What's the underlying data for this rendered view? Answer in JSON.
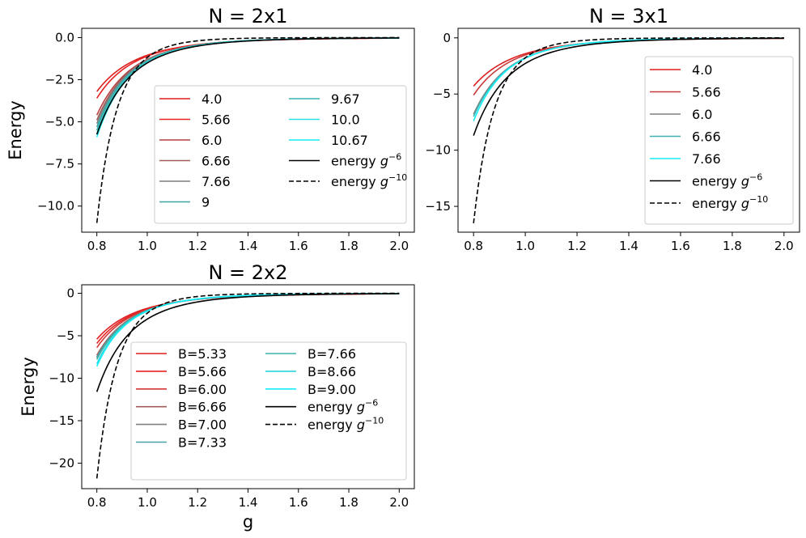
{
  "chart_data": [
    {
      "type": "line",
      "title": "N = 2x1",
      "xlabel": "",
      "ylabel": "Energy",
      "xlim": [
        0.74,
        2.06
      ],
      "ylim": [
        -11.55,
        0.55
      ],
      "xticks": [
        "0.8",
        "1.0",
        "1.2",
        "1.4",
        "1.6",
        "1.8",
        "2.0"
      ],
      "yticks": [
        {
          "v": 0,
          "label": "0.0"
        },
        {
          "v": -2.5,
          "label": "−2.5"
        },
        {
          "v": -5,
          "label": "−5.0"
        },
        {
          "v": -7.5,
          "label": "−7.5"
        },
        {
          "v": -10,
          "label": "−10.0"
        }
      ],
      "legend_columns": 2,
      "legend_position": "lower-right",
      "series": [
        {
          "name": "4.0",
          "color": "#dd1f1f",
          "style": "solid",
          "exponent": 5,
          "y_at_0.8": -3.2
        },
        {
          "name": "5.66",
          "color": "#e62222",
          "style": "solid",
          "exponent": 5.3,
          "y_at_0.8": -3.6
        },
        {
          "name": "6.0",
          "color": "#b94040",
          "style": "solid",
          "exponent": 5.7,
          "y_at_0.8": -4.6
        },
        {
          "name": "6.66",
          "color": "#a05a5a",
          "style": "solid",
          "exponent": 5.9,
          "y_at_0.8": -4.9
        },
        {
          "name": "7.66",
          "color": "#808080",
          "style": "solid",
          "exponent": 6,
          "y_at_0.8": -5.1
        },
        {
          "name": "9",
          "color": "#3fa6a0",
          "style": "solid",
          "exponent": 6,
          "y_at_0.8": -5.3
        },
        {
          "name": "9.67",
          "color": "#3fb2b2",
          "style": "solid",
          "exponent": 6.1,
          "y_at_0.8": -5.5
        },
        {
          "name": "10.0",
          "color": "#2bdfe6",
          "style": "solid",
          "exponent": 6.1,
          "y_at_0.8": -5.7
        },
        {
          "name": "10.67",
          "color": "#14eef6",
          "style": "solid",
          "exponent": 6.2,
          "y_at_0.8": -5.9
        },
        {
          "name": "energy g^-6",
          "label_base": "energy ",
          "label_var": "g",
          "label_exp": "−6",
          "color": "#000000",
          "style": "solid",
          "exponent": 6,
          "y_at_0.8": -5.75
        },
        {
          "name": "energy g^-10",
          "label_base": "energy ",
          "label_var": "g",
          "label_exp": "−10",
          "color": "#000000",
          "style": "dashed",
          "exponent": 10,
          "y_at_0.8": -11.0
        }
      ]
    },
    {
      "type": "line",
      "title": "N = 3x1",
      "xlabel": "",
      "ylabel": "",
      "xlim": [
        0.74,
        2.06
      ],
      "ylim": [
        -17.3,
        0.85
      ],
      "xticks": [
        "0.8",
        "1.0",
        "1.2",
        "1.4",
        "1.6",
        "1.8",
        "2.0"
      ],
      "yticks": [
        {
          "v": 0,
          "label": "0"
        },
        {
          "v": -5,
          "label": "−5"
        },
        {
          "v": -10,
          "label": "−10"
        },
        {
          "v": -15,
          "label": "−15"
        }
      ],
      "legend_columns": 1,
      "legend_position": "right",
      "series": [
        {
          "name": "4.0",
          "color": "#dd1f1f",
          "style": "solid",
          "exponent": 5,
          "y_at_0.8": -4.3
        },
        {
          "name": "5.66",
          "color": "#c83a3a",
          "style": "solid",
          "exponent": 5.4,
          "y_at_0.8": -5.1
        },
        {
          "name": "6.0",
          "color": "#808080",
          "style": "solid",
          "exponent": 6,
          "y_at_0.8": -6.8
        },
        {
          "name": "6.66",
          "color": "#3fb2b2",
          "style": "solid",
          "exponent": 6.1,
          "y_at_0.8": -7.0
        },
        {
          "name": "7.66",
          "color": "#14eef6",
          "style": "solid",
          "exponent": 6.3,
          "y_at_0.8": -7.4
        },
        {
          "name": "energy g^-6",
          "label_base": "energy ",
          "label_var": "g",
          "label_exp": "−6",
          "color": "#000000",
          "style": "solid",
          "exponent": 6,
          "y_at_0.8": -8.7
        },
        {
          "name": "energy g^-10",
          "label_base": "energy ",
          "label_var": "g",
          "label_exp": "−10",
          "color": "#000000",
          "style": "dashed",
          "exponent": 10,
          "y_at_0.8": -16.5
        }
      ]
    },
    {
      "type": "line",
      "title": "N = 2x2",
      "xlabel": "g",
      "ylabel": "Energy",
      "xlim": [
        0.74,
        2.06
      ],
      "ylim": [
        -23.0,
        1.0
      ],
      "xticks": [
        "0.8",
        "1.0",
        "1.2",
        "1.4",
        "1.6",
        "1.8",
        "2.0"
      ],
      "yticks": [
        {
          "v": 0,
          "label": "0"
        },
        {
          "v": -5,
          "label": "−5"
        },
        {
          "v": -10,
          "label": "−10"
        },
        {
          "v": -15,
          "label": "−15"
        },
        {
          "v": -20,
          "label": "−20"
        }
      ],
      "legend_columns": 2,
      "legend_position": "lower-right",
      "series": [
        {
          "name": "B=5.33",
          "color": "#dd1f1f",
          "style": "solid",
          "exponent": 5,
          "y_at_0.8": -5.4
        },
        {
          "name": "B=5.66",
          "color": "#e62222",
          "style": "solid",
          "exponent": 5.2,
          "y_at_0.8": -5.9
        },
        {
          "name": "B=6.00",
          "color": "#d43535",
          "style": "solid",
          "exponent": 5.4,
          "y_at_0.8": -6.4
        },
        {
          "name": "B=6.66",
          "color": "#a05a5a",
          "style": "solid",
          "exponent": 5.8,
          "y_at_0.8": -7.3
        },
        {
          "name": "B=7.00",
          "color": "#808080",
          "style": "solid",
          "exponent": 5.9,
          "y_at_0.8": -7.5
        },
        {
          "name": "B=7.33",
          "color": "#4fa0a6",
          "style": "solid",
          "exponent": 5.9,
          "y_at_0.8": -7.6
        },
        {
          "name": "B=7.66",
          "color": "#3fb2a8",
          "style": "solid",
          "exponent": 6,
          "y_at_0.8": -7.8
        },
        {
          "name": "B=8.66",
          "color": "#2bd6dc",
          "style": "solid",
          "exponent": 6.2,
          "y_at_0.8": -8.3
        },
        {
          "name": "B=9.00",
          "color": "#14eef6",
          "style": "solid",
          "exponent": 6.3,
          "y_at_0.8": -8.6
        },
        {
          "name": "energy g^-6",
          "label_base": "energy ",
          "label_var": "g",
          "label_exp": "−6",
          "color": "#000000",
          "style": "solid",
          "exponent": 6,
          "y_at_0.8": -11.6
        },
        {
          "name": "energy g^-10",
          "label_base": "energy ",
          "label_var": "g",
          "label_exp": "−10",
          "color": "#000000",
          "style": "dashed",
          "exponent": 10,
          "y_at_0.8": -21.8
        }
      ]
    }
  ]
}
